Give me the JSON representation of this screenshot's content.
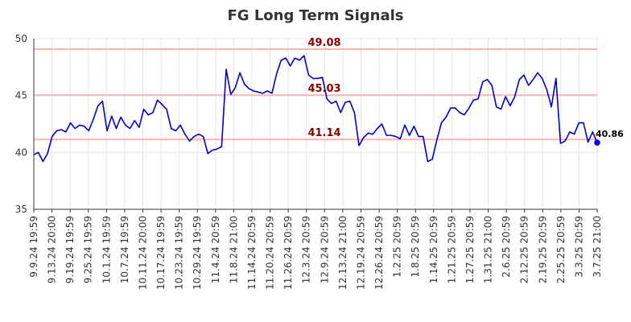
{
  "chart_data": {
    "type": "line",
    "title": "FG Long Term Signals",
    "ylim": [
      35,
      50
    ],
    "yticks": [
      35,
      40,
      45,
      50
    ],
    "grid": true,
    "x_tick_labels": [
      "9.9.24 19:59",
      "9.13.24 20:00",
      "9.19.24 19:59",
      "9.25.24 19:59",
      "10.1.24 19:59",
      "10.7.24 19:59",
      "10.11.24 20:00",
      "10.17.24 19:59",
      "10.23.24 19:59",
      "10.29.24 19:59",
      "11.4.24 20:59",
      "11.8.24 21:00",
      "11.14.24 20:59",
      "11.20.24 20:59",
      "11.26.24 20:59",
      "12.3.24 20:59",
      "12.9.24 20:59",
      "12.13.24 21:00",
      "12.19.24 20:59",
      "12.26.24 20:59",
      "1.2.25 20:59",
      "1.8.25 20:59",
      "1.14.25 20:59",
      "1.21.25 20:59",
      "1.27.25 20:59",
      "1.31.25 21:00",
      "2.6.25 20:59",
      "2.12.25 20:59",
      "2.19.25 20:59",
      "2.25.25 20:59",
      "3.3.25 20:59",
      "3.7.25 21:00"
    ],
    "series": [
      {
        "color": "#0000cc",
        "values": [
          39.8,
          40.0,
          39.2,
          39.9,
          41.4,
          41.9,
          42.0,
          41.8,
          42.6,
          42.1,
          42.4,
          42.3,
          41.9,
          42.9,
          44.1,
          44.5,
          41.9,
          43.2,
          42.1,
          43.1,
          42.4,
          42.1,
          42.8,
          42.2,
          43.8,
          43.3,
          43.5,
          44.6,
          44.2,
          43.8,
          42.1,
          41.9,
          42.4,
          41.6,
          41.0,
          41.4,
          41.6,
          41.4,
          39.9,
          40.2,
          40.3,
          40.5,
          47.3,
          45.1,
          45.7,
          47.0,
          46.0,
          45.6,
          45.4,
          45.3,
          45.2,
          45.4,
          45.2,
          46.9,
          48.1,
          48.3,
          47.6,
          48.3,
          48.1,
          48.5,
          46.8,
          46.5,
          46.5,
          46.6,
          44.7,
          44.3,
          44.5,
          43.5,
          44.4,
          44.5,
          43.5,
          40.6,
          41.3,
          41.7,
          41.6,
          42.1,
          42.5,
          41.5,
          41.5,
          41.4,
          41.2,
          42.4,
          41.5,
          42.3,
          41.4,
          41.4,
          39.2,
          39.4,
          41.1,
          42.6,
          43.1,
          43.9,
          43.9,
          43.5,
          43.3,
          43.9,
          44.6,
          44.7,
          46.2,
          46.4,
          45.9,
          44.0,
          43.8,
          44.9,
          44.1,
          44.9,
          46.4,
          46.8,
          45.9,
          46.4,
          47.0,
          46.5,
          45.5,
          44.0,
          46.5,
          40.8,
          41.0,
          41.8,
          41.6,
          42.6,
          42.6,
          40.9,
          41.8,
          40.86
        ]
      }
    ],
    "horizontal_lines": [
      {
        "value": 49.08,
        "label": "49.08"
      },
      {
        "value": 45.03,
        "label": "45.03"
      },
      {
        "value": 41.14,
        "label": "41.14"
      }
    ],
    "last_value_label": "40.86",
    "colors": {
      "line": "#0000cc",
      "hline": "#ffb3b3",
      "hlabel": "#8b0000",
      "grid": "#e6e6e6",
      "axis": "#333333",
      "last_point": "#0000ff"
    }
  }
}
